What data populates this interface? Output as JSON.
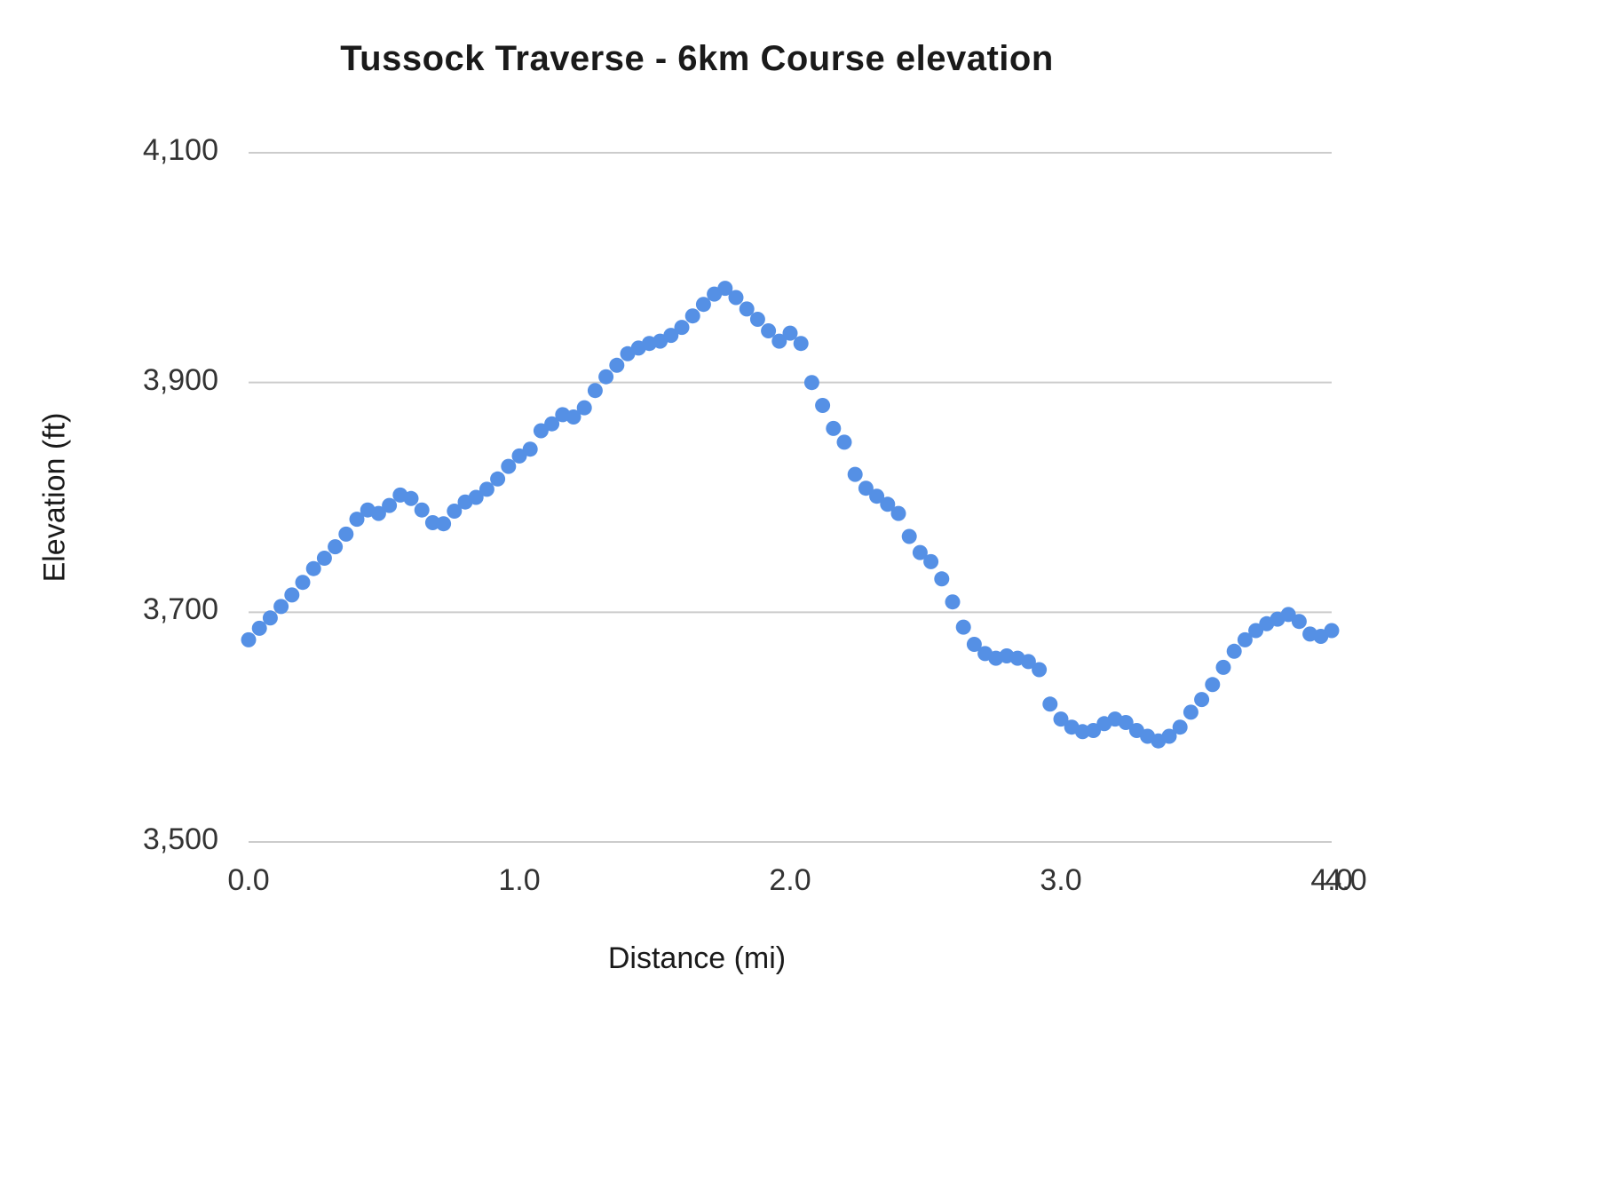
{
  "chart_data": {
    "type": "scatter",
    "title": "Tussock Traverse - 6km Course elevation",
    "xlabel": "Distance (mi)",
    "ylabel": "Elevation (ft)",
    "xlim": [
      0,
      4
    ],
    "ylim": [
      3500,
      4100
    ],
    "x_ticks": [
      0,
      1,
      2,
      3,
      4
    ],
    "x_tick_labels": [
      "0.0",
      "1.0",
      "2.0",
      "3.0",
      "4.0"
    ],
    "x_axis_end_label": "4.0",
    "y_ticks": [
      3500,
      3700,
      3900,
      4100
    ],
    "y_tick_labels": [
      "3,500",
      "3,700",
      "3,900",
      "4,100"
    ],
    "grid_on": true,
    "legend": "none",
    "point_color": "#5590e5",
    "grid_color": "#cccccc",
    "series": [
      {
        "name": "elevation",
        "x": [
          0,
          0.04,
          0.08,
          0.12,
          0.16,
          0.2,
          0.24,
          0.28,
          0.32,
          0.36,
          0.4,
          0.44,
          0.48,
          0.52,
          0.56,
          0.6,
          0.64,
          0.68,
          0.72,
          0.76,
          0.8,
          0.84,
          0.88,
          0.92,
          0.96,
          1,
          1.04,
          1.08,
          1.12,
          1.16,
          1.2,
          1.24,
          1.28,
          1.32,
          1.36,
          1.4,
          1.44,
          1.48,
          1.52,
          1.56,
          1.6,
          1.64,
          1.68,
          1.72,
          1.76,
          1.8,
          1.84,
          1.88,
          1.92,
          1.96,
          2,
          2.04,
          2.08,
          2.12,
          2.16,
          2.2,
          2.24,
          2.28,
          2.32,
          2.36,
          2.4,
          2.44,
          2.48,
          2.52,
          2.56,
          2.6,
          2.64,
          2.68,
          2.72,
          2.76,
          2.8,
          2.84,
          2.88,
          2.92,
          2.96,
          3,
          3.04,
          3.08,
          3.12,
          3.16,
          3.2,
          3.24,
          3.28,
          3.32,
          3.36,
          3.4,
          3.44,
          3.48,
          3.52,
          3.56,
          3.6,
          3.64,
          3.68,
          3.72,
          3.76,
          3.8,
          3.84,
          3.88,
          3.92,
          3.96,
          4
        ],
        "y": [
          3676,
          3686,
          3695,
          3705,
          3715,
          3726,
          3738,
          3747,
          3757,
          3768,
          3781,
          3789,
          3786,
          3793,
          3802,
          3799,
          3789,
          3778,
          3777,
          3788,
          3796,
          3800,
          3807,
          3816,
          3827,
          3836,
          3842,
          3858,
          3864,
          3872,
          3870,
          3878,
          3893,
          3905,
          3915,
          3925,
          3930,
          3934,
          3936,
          3941,
          3948,
          3958,
          3968,
          3977,
          3982,
          3974,
          3964,
          3955,
          3945,
          3936,
          3943,
          3934,
          3900,
          3880,
          3860,
          3848,
          3820,
          3808,
          3801,
          3794,
          3786,
          3766,
          3752,
          3744,
          3729,
          3709,
          3687,
          3672,
          3664,
          3660,
          3662,
          3660,
          3657,
          3650,
          3620,
          3607,
          3600,
          3596,
          3597,
          3603,
          3607,
          3604,
          3597,
          3592,
          3588,
          3592,
          3600,
          3613,
          3624,
          3637,
          3652,
          3666,
          3676,
          3684,
          3690,
          3694,
          3698,
          3692,
          3681,
          3679,
          3684
        ]
      }
    ]
  }
}
